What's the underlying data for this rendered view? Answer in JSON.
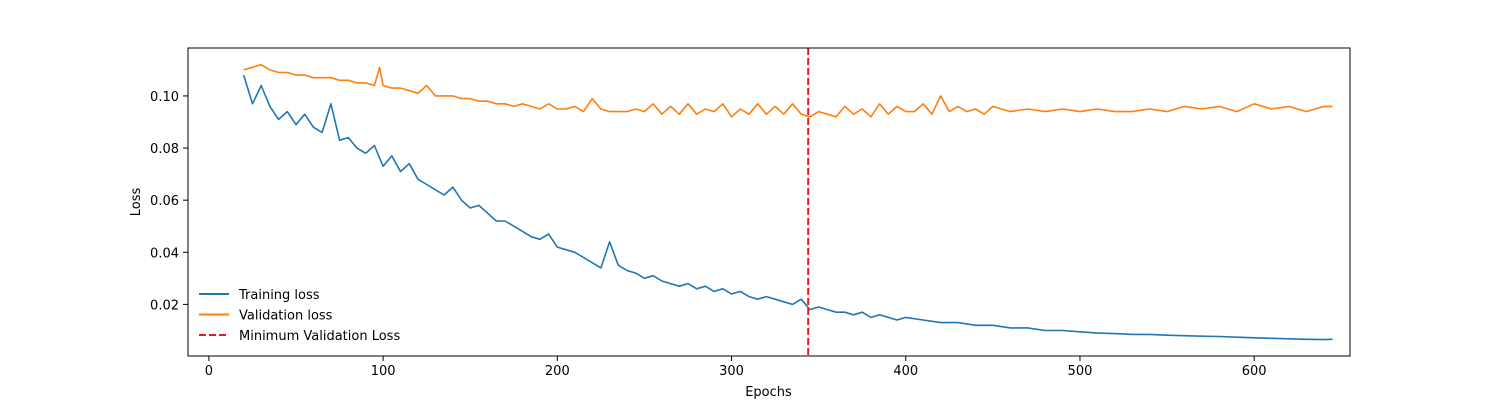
{
  "chart_data": {
    "type": "line",
    "title": "",
    "xlabel": "Epochs",
    "ylabel": "Loss",
    "xlim": [
      -12,
      655
    ],
    "ylim": [
      0.0002,
      0.1184
    ],
    "xticks": [
      0,
      100,
      200,
      300,
      400,
      500,
      600
    ],
    "yticks": [
      0.02,
      0.04,
      0.06,
      0.08,
      0.1
    ],
    "ytick_labels": [
      "0.02",
      "0.04",
      "0.06",
      "0.08",
      "0.10"
    ],
    "grid": false,
    "legend_position": "lower-left",
    "series": [
      {
        "name": "Training loss",
        "color": "#1f77b4",
        "style": "solid",
        "x": [
          20,
          25,
          30,
          35,
          40,
          45,
          50,
          55,
          60,
          65,
          70,
          75,
          80,
          85,
          90,
          95,
          100,
          105,
          110,
          115,
          120,
          125,
          130,
          135,
          140,
          145,
          150,
          155,
          160,
          165,
          170,
          175,
          180,
          185,
          190,
          195,
          200,
          205,
          210,
          215,
          220,
          225,
          230,
          235,
          240,
          245,
          250,
          255,
          260,
          265,
          270,
          275,
          280,
          285,
          290,
          295,
          300,
          305,
          310,
          315,
          320,
          325,
          330,
          335,
          340,
          345,
          350,
          355,
          360,
          365,
          370,
          375,
          380,
          385,
          390,
          395,
          400,
          410,
          420,
          430,
          440,
          450,
          460,
          470,
          480,
          490,
          500,
          510,
          520,
          530,
          540,
          550,
          560,
          570,
          580,
          590,
          600,
          610,
          620,
          630,
          640,
          645
        ],
        "y": [
          0.108,
          0.097,
          0.104,
          0.096,
          0.091,
          0.094,
          0.089,
          0.093,
          0.088,
          0.086,
          0.097,
          0.083,
          0.084,
          0.08,
          0.078,
          0.081,
          0.073,
          0.077,
          0.071,
          0.074,
          0.068,
          0.066,
          0.064,
          0.062,
          0.065,
          0.06,
          0.057,
          0.058,
          0.055,
          0.052,
          0.052,
          0.05,
          0.048,
          0.046,
          0.045,
          0.047,
          0.042,
          0.041,
          0.04,
          0.038,
          0.036,
          0.034,
          0.044,
          0.035,
          0.033,
          0.032,
          0.03,
          0.031,
          0.029,
          0.028,
          0.027,
          0.028,
          0.026,
          0.027,
          0.025,
          0.026,
          0.024,
          0.025,
          0.023,
          0.022,
          0.023,
          0.022,
          0.021,
          0.02,
          0.022,
          0.018,
          0.019,
          0.018,
          0.017,
          0.017,
          0.016,
          0.017,
          0.015,
          0.016,
          0.015,
          0.014,
          0.015,
          0.014,
          0.013,
          0.013,
          0.012,
          0.012,
          0.011,
          0.011,
          0.01,
          0.01,
          0.0095,
          0.009,
          0.0088,
          0.0085,
          0.0085,
          0.0082,
          0.008,
          0.0078,
          0.0077,
          0.0074,
          0.0072,
          0.007,
          0.0068,
          0.0066,
          0.0065,
          0.0066
        ]
      },
      {
        "name": "Validation loss",
        "color": "#ff7f0e",
        "style": "solid",
        "x": [
          20,
          25,
          30,
          35,
          40,
          45,
          50,
          55,
          60,
          65,
          70,
          75,
          80,
          85,
          90,
          95,
          98,
          100,
          105,
          110,
          115,
          120,
          125,
          130,
          135,
          140,
          145,
          150,
          155,
          160,
          165,
          170,
          175,
          180,
          185,
          190,
          195,
          200,
          205,
          210,
          215,
          220,
          225,
          230,
          235,
          240,
          245,
          250,
          255,
          260,
          265,
          270,
          275,
          280,
          285,
          290,
          295,
          300,
          305,
          310,
          315,
          320,
          325,
          330,
          335,
          340,
          345,
          350,
          355,
          360,
          365,
          370,
          375,
          380,
          385,
          390,
          395,
          400,
          405,
          410,
          415,
          420,
          425,
          430,
          435,
          440,
          445,
          450,
          460,
          470,
          480,
          490,
          500,
          510,
          520,
          530,
          540,
          550,
          560,
          570,
          580,
          590,
          600,
          610,
          620,
          630,
          640,
          645
        ],
        "y": [
          0.11,
          0.111,
          0.112,
          0.11,
          0.109,
          0.109,
          0.108,
          0.108,
          0.107,
          0.107,
          0.107,
          0.106,
          0.106,
          0.105,
          0.105,
          0.104,
          0.111,
          0.104,
          0.103,
          0.103,
          0.102,
          0.101,
          0.104,
          0.1,
          0.1,
          0.1,
          0.099,
          0.099,
          0.098,
          0.098,
          0.097,
          0.097,
          0.096,
          0.097,
          0.096,
          0.095,
          0.097,
          0.095,
          0.095,
          0.096,
          0.094,
          0.099,
          0.095,
          0.094,
          0.094,
          0.094,
          0.095,
          0.094,
          0.097,
          0.093,
          0.096,
          0.093,
          0.097,
          0.093,
          0.095,
          0.094,
          0.097,
          0.092,
          0.095,
          0.093,
          0.097,
          0.093,
          0.096,
          0.093,
          0.097,
          0.093,
          0.092,
          0.094,
          0.093,
          0.092,
          0.096,
          0.093,
          0.095,
          0.092,
          0.097,
          0.093,
          0.096,
          0.094,
          0.094,
          0.097,
          0.093,
          0.1,
          0.094,
          0.096,
          0.094,
          0.095,
          0.093,
          0.096,
          0.094,
          0.095,
          0.094,
          0.095,
          0.094,
          0.095,
          0.094,
          0.094,
          0.095,
          0.094,
          0.096,
          0.095,
          0.096,
          0.094,
          0.097,
          0.095,
          0.096,
          0.094,
          0.096,
          0.096
        ]
      },
      {
        "name": "Minimum Validation Loss",
        "color": "#e41a1c",
        "style": "dashed",
        "vertical_x": 344
      }
    ]
  }
}
